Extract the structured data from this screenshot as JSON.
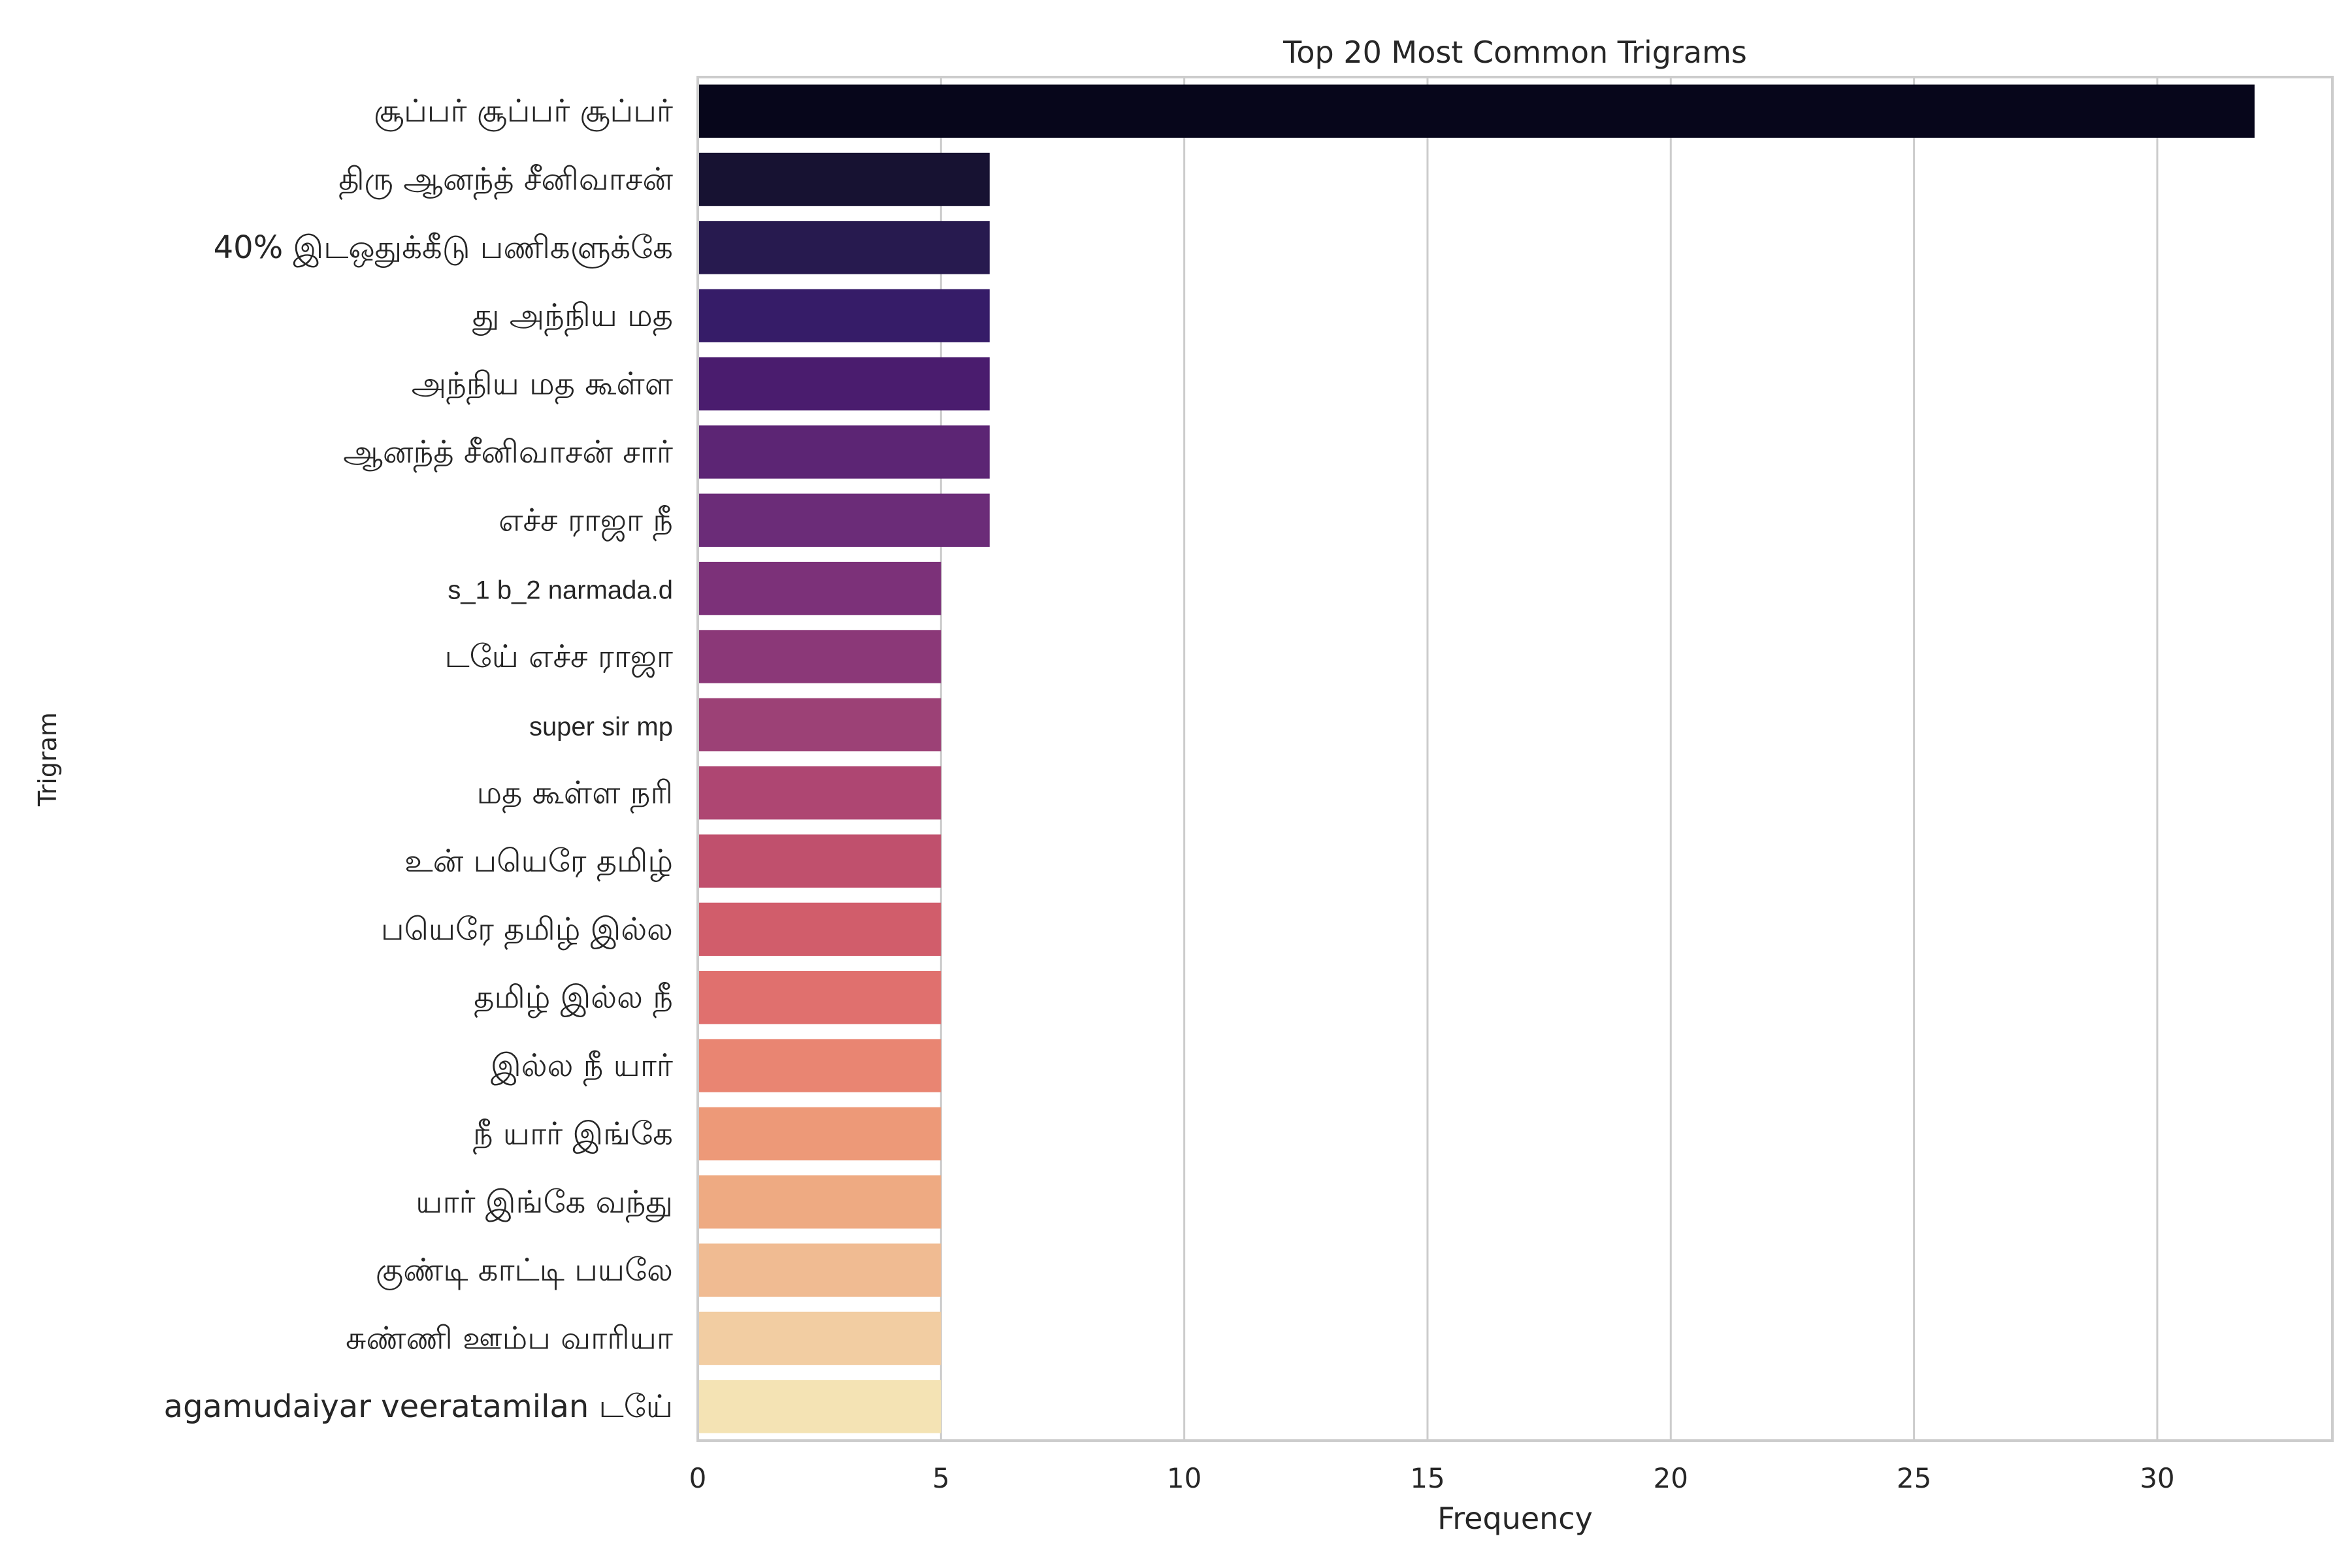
{
  "chart_data": {
    "type": "bar",
    "orientation": "horizontal",
    "title": "Top 20 Most Common Trigrams",
    "xlabel": "Frequency",
    "ylabel": "Trigram",
    "xlim": [
      0,
      33.6
    ],
    "xticks": [
      0,
      5,
      10,
      15,
      20,
      25,
      30
    ],
    "grid": "vertical",
    "palette": "magma",
    "categories": [
      "சூப்பர் சூப்பர் சூப்பர்",
      "திரு ஆனந்த் சீனிவாசன்",
      "40% இடஒதுக்கீடு பணிகளுக்கே",
      "து அந்நிய மத",
      "அந்நிய மத கூள்ள",
      "ஆனந்த் சீனிவாசன் சார்",
      "எச்ச ராஜா நீ",
      "s_1 b_2 narmada.d",
      "டயே் எச்ச ராஜா",
      "super sir mp",
      "மத கூள்ள நரி",
      "உன் பயெரே தமிழ்",
      "பயெரே தமிழ் இல்ல",
      "தமிழ் இல்ல நீ",
      "இல்ல நீ யார்",
      "நீ யார் இங்கே",
      "யார் இங்கே வந்து",
      "குண்டி காட்டி பயலே",
      "சுண்ணி ஊம்ப வாரியா",
      "agamudaiyar veeratamilan டயே்"
    ],
    "values": [
      32,
      6,
      6,
      6,
      6,
      6,
      6,
      5,
      5,
      5,
      5,
      5,
      5,
      5,
      5,
      5,
      5,
      5,
      5,
      5
    ],
    "colors": [
      "#07061b",
      "#171232",
      "#271a4f",
      "#361c68",
      "#4a1c6e",
      "#5c2574",
      "#6b2c78",
      "#7c3179",
      "#8b3878",
      "#9c4176",
      "#ae4672",
      "#c0506d",
      "#d15d6b",
      "#e0706e",
      "#e98572",
      "#ed9978",
      "#eeaa82",
      "#f0bb92",
      "#f2cda2",
      "#f4e3b4"
    ]
  }
}
